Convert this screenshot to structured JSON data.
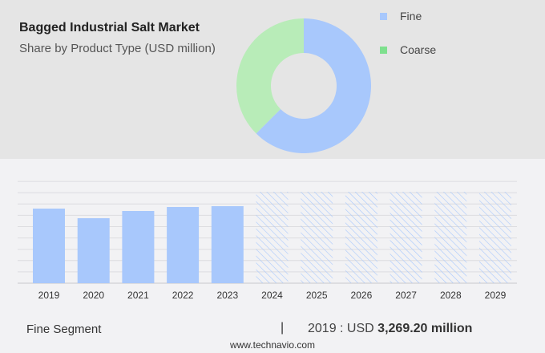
{
  "header": {
    "title": "Bagged Industrial Salt Market",
    "subtitle": "Share by Product Type (USD million)"
  },
  "chart_data": [
    {
      "type": "pie",
      "donut": true,
      "categories": [
        "Fine",
        "Coarse"
      ],
      "values": [
        62.5,
        37.5
      ],
      "colors": [
        "#a8c8fc",
        "#b8ecb8"
      ],
      "legend_colors": [
        "#a8c8fc",
        "#7ee08e"
      ],
      "legend": "right"
    },
    {
      "type": "bar",
      "categories": [
        "2019",
        "2020",
        "2021",
        "2022",
        "2023",
        "2024",
        "2025",
        "2026",
        "2027",
        "2028",
        "2029"
      ],
      "series": [
        {
          "name": "Fine",
          "values": [
            3269.2,
            2847,
            3164,
            3339,
            3375,
            null,
            null,
            null,
            null,
            null,
            null
          ]
        }
      ],
      "forecast_categories": [
        "2024",
        "2025",
        "2026",
        "2027",
        "2028",
        "2029"
      ],
      "ylim": [
        0,
        4500
      ],
      "grid": true,
      "color": "#a8c8fc"
    }
  ],
  "footer": {
    "segment": "Fine Segment",
    "separator": "|",
    "year_label": "2019 : USD",
    "value": "3,269.20 million",
    "site": "www.technavio.com"
  }
}
